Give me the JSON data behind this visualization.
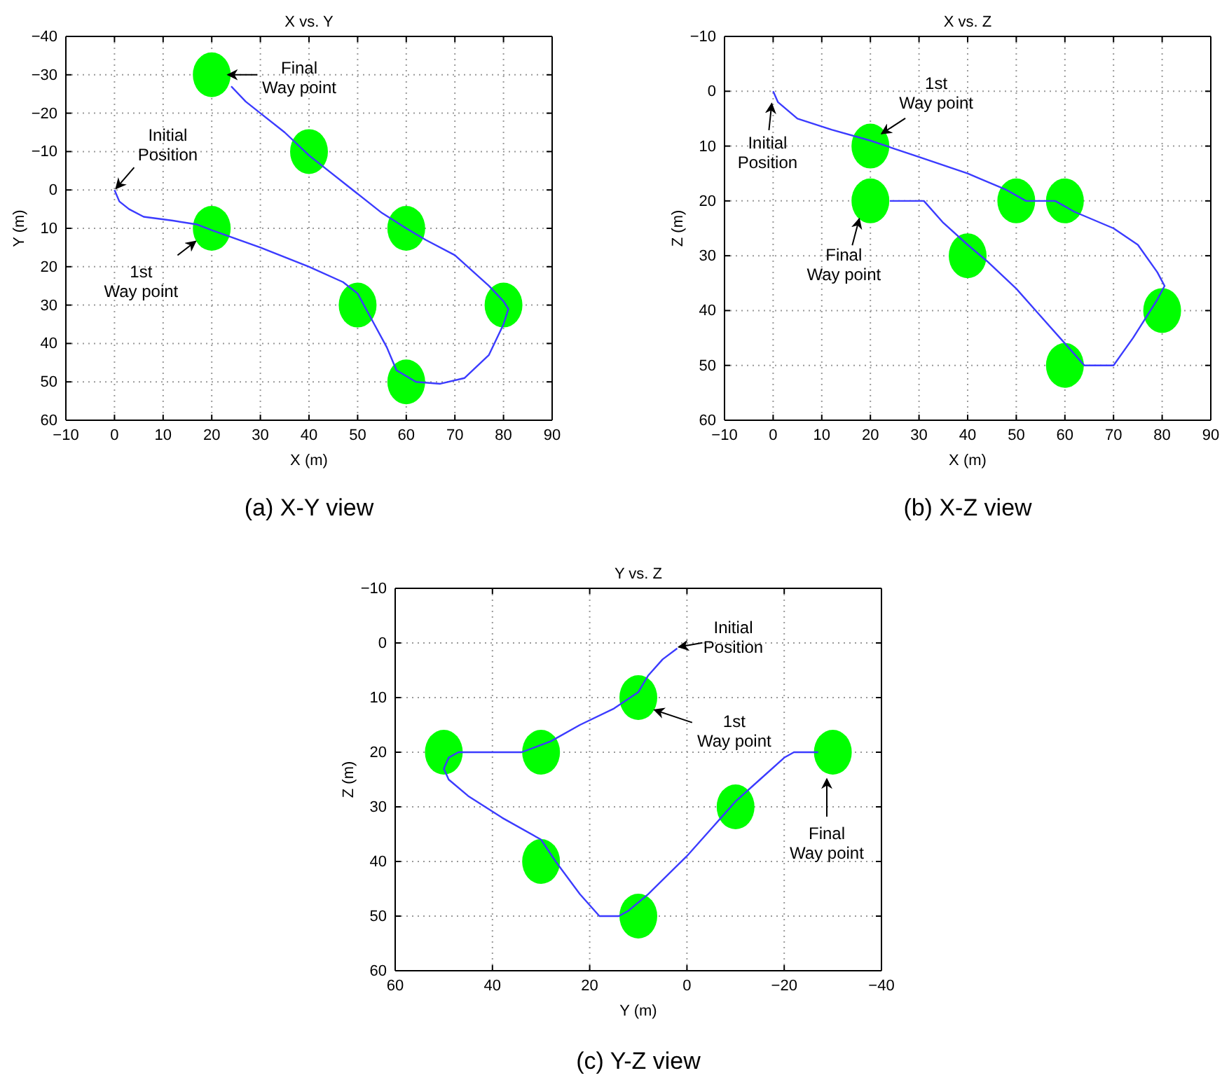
{
  "chart_data": [
    {
      "type": "scatter",
      "title": "X vs. Y",
      "xlabel": "X (m)",
      "ylabel": "Y (m)",
      "xlim": [
        -10,
        90
      ],
      "ylim": [
        60,
        -40
      ],
      "xticks": [
        -10,
        0,
        10,
        20,
        30,
        40,
        50,
        60,
        70,
        80,
        90
      ],
      "yticks": [
        -40,
        -30,
        -20,
        -10,
        0,
        10,
        20,
        30,
        40,
        50,
        60
      ],
      "grid": true,
      "series": [
        {
          "type": "line",
          "color": "#3b3bff",
          "x": [
            0,
            1,
            3,
            6,
            12,
            17,
            20,
            30,
            40,
            47,
            50,
            53,
            56,
            58,
            62,
            67,
            72,
            77,
            80,
            81,
            80,
            77,
            70,
            64,
            60,
            55,
            48,
            40,
            35,
            30,
            27,
            24
          ],
          "values": [
            0,
            3,
            5,
            7,
            8,
            9,
            10.5,
            15,
            20,
            24,
            27,
            34,
            41,
            47,
            50,
            50.5,
            49,
            43,
            35,
            31,
            29,
            25,
            17,
            13,
            10,
            6,
            -1,
            -9,
            -15,
            -20,
            -23,
            -27
          ]
        },
        {
          "color": "#00ff00",
          "marker": "circle",
          "x": [
            20,
            50,
            60,
            80,
            60,
            40,
            20
          ],
          "values": [
            10,
            30,
            50,
            30,
            10,
            -10,
            -30
          ]
        }
      ],
      "annotations": [
        {
          "text": "Initial\nPosition",
          "x": 0,
          "y": 0
        },
        {
          "text": "1st\nWay point",
          "x": 17,
          "y": 13
        },
        {
          "text": "Final\nWay point",
          "x": 23,
          "y": -30
        },
        "(a)  X-Y view"
      ]
    },
    {
      "type": "scatter",
      "title": "X vs. Z",
      "xlabel": "X (m)",
      "ylabel": "Z (m)",
      "xlim": [
        -10,
        90
      ],
      "ylim": [
        60,
        -10
      ],
      "xticks": [
        -10,
        0,
        10,
        20,
        30,
        40,
        50,
        60,
        70,
        80,
        90
      ],
      "yticks": [
        -10,
        0,
        10,
        20,
        30,
        40,
        50,
        60
      ],
      "grid": true,
      "series": [
        {
          "type": "line",
          "color": "#3b3bff",
          "x": [
            0,
            1,
            5,
            12,
            20,
            30,
            40,
            48,
            52,
            58,
            62,
            70,
            75,
            79,
            80.5,
            79,
            74,
            70,
            64,
            60,
            54,
            50,
            44,
            40,
            35,
            31,
            30,
            25,
            24
          ],
          "values": [
            0,
            2,
            5,
            7,
            9,
            12,
            15,
            18,
            20,
            20,
            22,
            25,
            28,
            33,
            35.5,
            38,
            45,
            50,
            50,
            46,
            40,
            36,
            31,
            28,
            24,
            20,
            20,
            20,
            20
          ]
        },
        {
          "color": "#00ff00",
          "marker": "circle",
          "x": [
            20,
            50,
            60,
            80,
            60,
            40,
            20
          ],
          "values": [
            10,
            20,
            20,
            40,
            50,
            30,
            20
          ]
        }
      ],
      "annotations": [
        {
          "text": "Initial\nPosition",
          "x": 0,
          "y": 2
        },
        {
          "text": "1st\nWay point",
          "x": 22,
          "y": 8
        },
        {
          "text": "Final\nWay point",
          "x": 18,
          "y": 23
        },
        "(b)  X-Z view"
      ]
    },
    {
      "type": "scatter",
      "title": "Y vs. Z",
      "xlabel": "Y (m)",
      "ylabel": "Z (m)",
      "xlim": [
        60,
        -40
      ],
      "ylim": [
        60,
        -10
      ],
      "xticks": [
        60,
        40,
        20,
        0,
        -20,
        -40
      ],
      "yticks": [
        -10,
        0,
        10,
        20,
        30,
        40,
        50,
        60
      ],
      "grid": true,
      "series": [
        {
          "type": "line",
          "color": "#3b3bff",
          "x": [
            2,
            5,
            8,
            10,
            15,
            22,
            28,
            34,
            40,
            47,
            49,
            50,
            49,
            45,
            38,
            30,
            27,
            22,
            18,
            14,
            12,
            8,
            0,
            -7,
            -10,
            -15,
            -20,
            -22,
            -27
          ],
          "values": [
            1,
            3,
            6,
            9,
            12,
            15,
            18,
            20,
            20,
            20,
            21,
            23,
            25,
            28,
            32,
            36,
            40,
            46,
            50,
            50,
            49,
            46,
            39,
            32,
            29,
            25,
            21,
            20,
            20
          ]
        },
        {
          "color": "#00ff00",
          "marker": "circle",
          "x": [
            10,
            30,
            50,
            30,
            10,
            -10,
            -30
          ],
          "values": [
            10,
            20,
            20,
            40,
            50,
            30,
            20
          ]
        }
      ],
      "annotations": [
        {
          "text": "Initial\nPosition",
          "x": 2,
          "y": 1
        },
        {
          "text": "1st\nWay point",
          "x": 7,
          "y": 12
        },
        "Final\nWay point",
        "(c)  Y-Z view"
      ]
    }
  ]
}
